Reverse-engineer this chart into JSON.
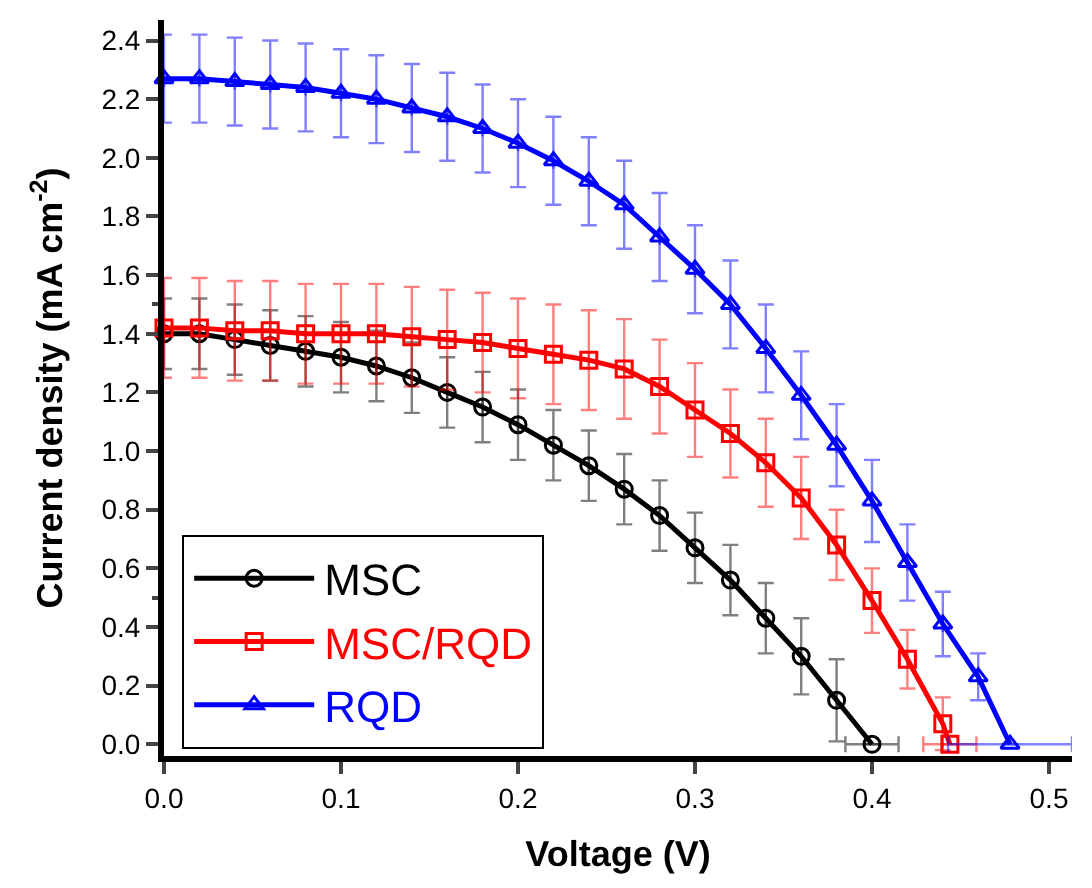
{
  "chart_data": {
    "type": "line",
    "xlabel": "Voltage (V)",
    "ylabel": "Current density (mA cm$^{-2}$)",
    "xlim": [
      0,
      0.513
    ],
    "ylim": [
      -0.04,
      2.47
    ],
    "xticks": [
      {
        "value": 0,
        "label": "0.0"
      },
      {
        "value": 0.1,
        "label": "0.1"
      },
      {
        "value": 0.2,
        "label": "0.2"
      },
      {
        "value": 0.3,
        "label": "0.3"
      },
      {
        "value": 0.4,
        "label": "0.4"
      },
      {
        "value": 0.5,
        "label": "0.5"
      }
    ],
    "yticks": [
      {
        "value": 0,
        "label": "0.0"
      },
      {
        "value": 0.2,
        "label": "0.2"
      },
      {
        "value": 0.4,
        "label": "0.4"
      },
      {
        "value": 0.6,
        "label": "0.6"
      },
      {
        "value": 0.8,
        "label": "0.8"
      },
      {
        "value": 1.0,
        "label": "1.0"
      },
      {
        "value": 1.2,
        "label": "1.2"
      },
      {
        "value": 1.4,
        "label": "1.4"
      },
      {
        "value": 1.6,
        "label": "1.6"
      },
      {
        "value": 1.8,
        "label": "1.8"
      },
      {
        "value": 2.0,
        "label": "2.0"
      },
      {
        "value": 2.2,
        "label": "2.2"
      },
      {
        "value": 2.4,
        "label": "2.4"
      }
    ],
    "legend": "bottom left",
    "line_style": "solid",
    "series": [
      {
        "name": "MSC",
        "color": "#000000",
        "marker": "circle",
        "x": [
          0,
          0.02,
          0.04,
          0.06,
          0.08,
          0.1,
          0.12,
          0.14,
          0.16,
          0.18,
          0.2,
          0.22,
          0.24,
          0.26,
          0.28,
          0.3,
          0.32,
          0.34,
          0.36,
          0.38,
          0.4
        ],
        "values": [
          1.4,
          1.4,
          1.38,
          1.36,
          1.34,
          1.32,
          1.29,
          1.25,
          1.2,
          1.15,
          1.09,
          1.02,
          0.95,
          0.87,
          0.78,
          0.67,
          0.56,
          0.43,
          0.3,
          0.15,
          0.0
        ],
        "errors": [
          0.12,
          0.12,
          0.12,
          0.12,
          0.12,
          0.12,
          0.12,
          0.12,
          0.12,
          0.12,
          0.12,
          0.12,
          0.12,
          0.12,
          0.12,
          0.12,
          0.12,
          0.12,
          0.13,
          0.14,
          null
        ],
        "xerrors": [
          null,
          null,
          null,
          null,
          null,
          null,
          null,
          null,
          null,
          null,
          null,
          null,
          null,
          null,
          null,
          null,
          null,
          null,
          null,
          null,
          0.015
        ]
      },
      {
        "name": "MSC/RQD",
        "color": "#ff0000",
        "marker": "square",
        "x": [
          0,
          0.02,
          0.04,
          0.06,
          0.08,
          0.1,
          0.12,
          0.14,
          0.16,
          0.18,
          0.2,
          0.22,
          0.24,
          0.26,
          0.28,
          0.3,
          0.32,
          0.34,
          0.36,
          0.38,
          0.4,
          0.42,
          0.44,
          0.444
        ],
        "values": [
          1.42,
          1.42,
          1.41,
          1.41,
          1.4,
          1.4,
          1.4,
          1.39,
          1.38,
          1.37,
          1.35,
          1.33,
          1.31,
          1.28,
          1.22,
          1.14,
          1.06,
          0.96,
          0.84,
          0.68,
          0.49,
          0.29,
          0.07,
          0.0
        ],
        "errors": [
          0.17,
          0.17,
          0.17,
          0.17,
          0.17,
          0.17,
          0.17,
          0.17,
          0.17,
          0.17,
          0.17,
          0.17,
          0.17,
          0.17,
          0.16,
          0.16,
          0.15,
          0.15,
          0.14,
          0.12,
          0.11,
          0.1,
          0.09,
          null
        ],
        "xerrors": [
          null,
          null,
          null,
          null,
          null,
          null,
          null,
          null,
          null,
          null,
          null,
          null,
          null,
          null,
          null,
          null,
          null,
          null,
          null,
          null,
          null,
          null,
          null,
          0.015
        ]
      },
      {
        "name": "RQD",
        "color": "#0000ff",
        "marker": "triangle",
        "x": [
          0,
          0.02,
          0.04,
          0.06,
          0.08,
          0.1,
          0.12,
          0.14,
          0.16,
          0.18,
          0.2,
          0.22,
          0.24,
          0.26,
          0.28,
          0.3,
          0.32,
          0.34,
          0.36,
          0.38,
          0.4,
          0.42,
          0.44,
          0.46,
          0.478
        ],
        "values": [
          2.27,
          2.27,
          2.26,
          2.25,
          2.24,
          2.22,
          2.2,
          2.17,
          2.14,
          2.1,
          2.05,
          1.99,
          1.92,
          1.84,
          1.73,
          1.62,
          1.5,
          1.35,
          1.19,
          1.02,
          0.83,
          0.62,
          0.41,
          0.23,
          0.0
        ],
        "errors": [
          0.15,
          0.15,
          0.15,
          0.15,
          0.15,
          0.15,
          0.15,
          0.15,
          0.15,
          0.15,
          0.15,
          0.15,
          0.15,
          0.15,
          0.15,
          0.15,
          0.15,
          0.15,
          0.15,
          0.14,
          0.14,
          0.13,
          0.11,
          0.08,
          null
        ],
        "xerrors": [
          null,
          null,
          null,
          null,
          null,
          null,
          null,
          null,
          null,
          null,
          null,
          null,
          null,
          null,
          null,
          null,
          null,
          null,
          null,
          null,
          null,
          null,
          null,
          null,
          0.035
        ]
      }
    ]
  }
}
